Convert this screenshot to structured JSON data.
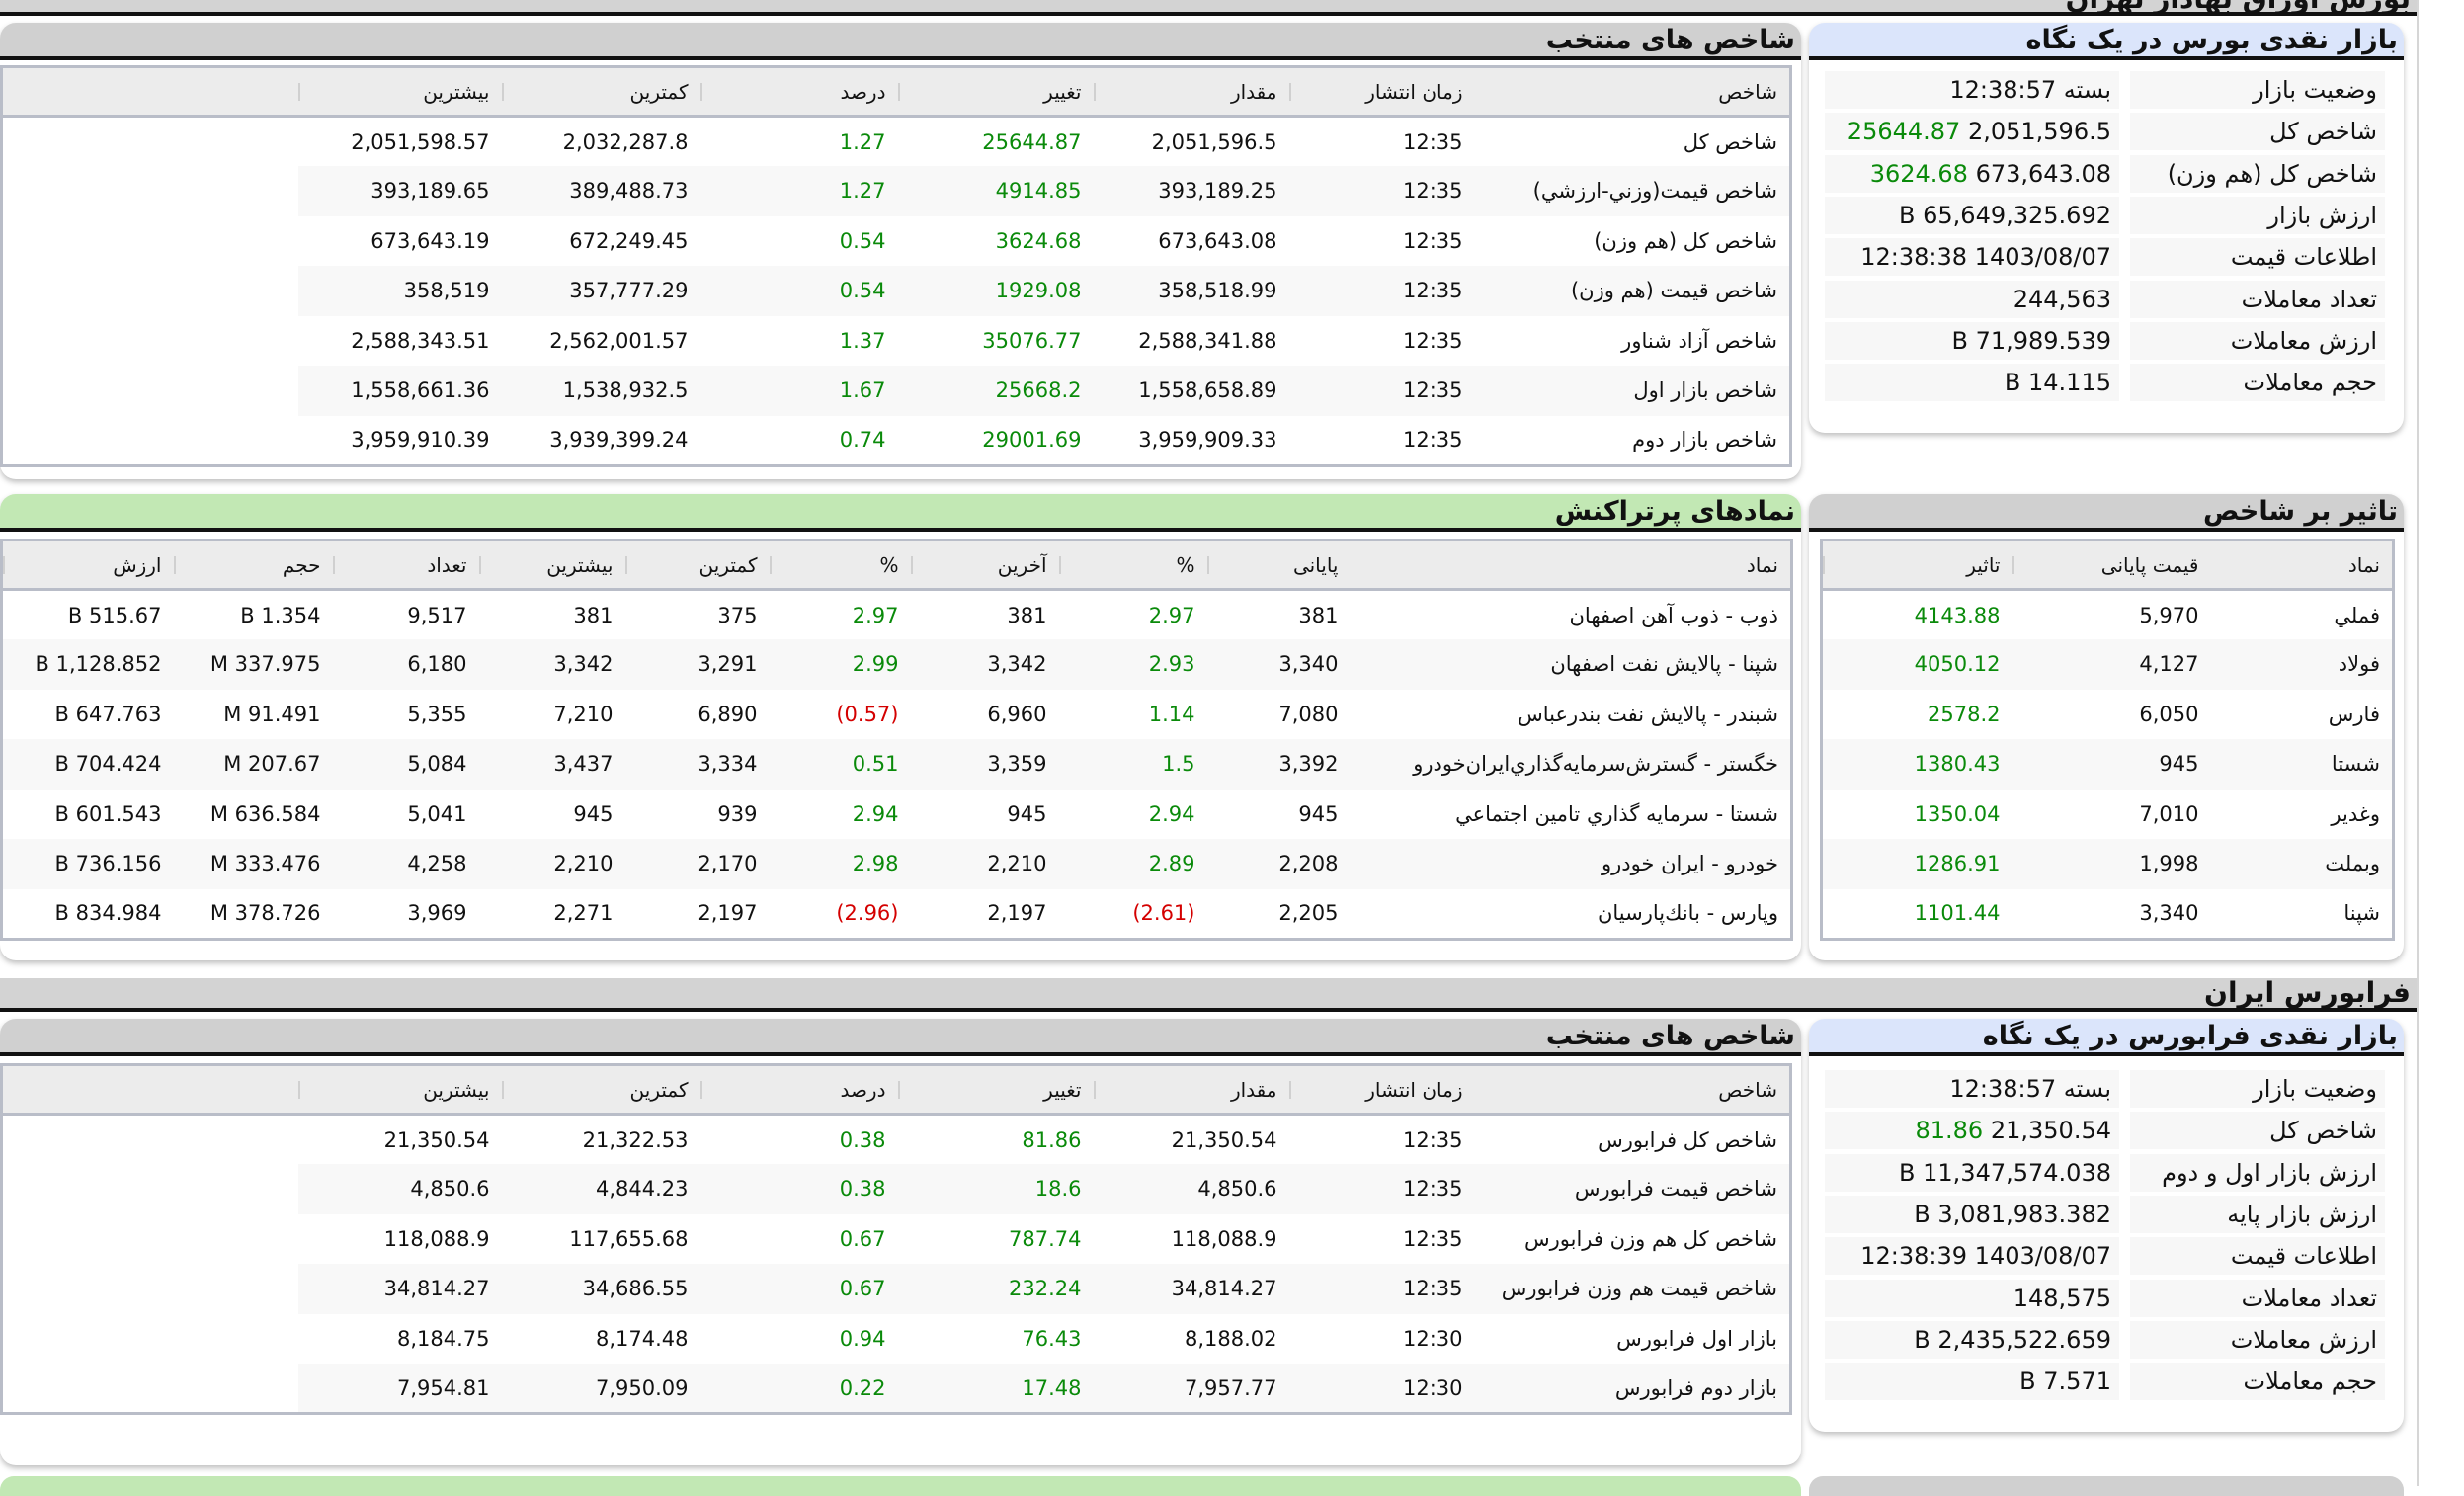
{
  "top_banner": {
    "title": "بورس اوراق بهادار تهران"
  },
  "tse_overview": {
    "title": "بازار نقدی بورس در یک نگاه",
    "rows": [
      {
        "label": "وضعیت بازار",
        "value": "بسته 12:38:57",
        "change": ""
      },
      {
        "label": "شاخص کل",
        "value": "2,051,596.5",
        "change": "25644.87"
      },
      {
        "label": "شاخص کل (هم وزن)",
        "value": "673,643.08",
        "change": "3624.68"
      },
      {
        "label": "ارزش بازار",
        "value": "65,649,325.692 B",
        "change": ""
      },
      {
        "label": "اطلاعات قیمت",
        "value": "1403/08/07 12:38:38",
        "change": ""
      },
      {
        "label": "تعداد معاملات",
        "value": "244,563",
        "change": ""
      },
      {
        "label": "ارزش معاملات",
        "value": "71,989.539 B",
        "change": ""
      },
      {
        "label": "حجم معاملات",
        "value": "14.115 B",
        "change": ""
      }
    ]
  },
  "tse_indices": {
    "title": "شاخص های منتخب",
    "columns": [
      "شاخص",
      "زمان انتشار",
      "مقدار",
      "تغییر",
      "درصد",
      "کمترین",
      "بیشترین",
      ""
    ],
    "rows": [
      [
        "شاخص کل",
        "12:35",
        "2,051,596.5",
        "25644.87",
        "1.27",
        "2,032,287.8",
        "2,051,598.57",
        ""
      ],
      [
        "شاخص قيمت(وزني-ارزشي)",
        "12:35",
        "393,189.25",
        "4914.85",
        "1.27",
        "389,488.73",
        "393,189.65",
        ""
      ],
      [
        "شاخص کل (هم وزن)",
        "12:35",
        "673,643.08",
        "3624.68",
        "0.54",
        "672,249.45",
        "673,643.19",
        ""
      ],
      [
        "شاخص قيمت (هم وزن)",
        "12:35",
        "358,518.99",
        "1929.08",
        "0.54",
        "357,777.29",
        "358,519",
        ""
      ],
      [
        "شاخص آزاد شناور",
        "12:35",
        "2,588,341.88",
        "35076.77",
        "1.37",
        "2,562,001.57",
        "2,588,343.51",
        ""
      ],
      [
        "شاخص بازار اول",
        "12:35",
        "1,558,658.89",
        "25668.2",
        "1.67",
        "1,538,932.5",
        "1,558,661.36",
        ""
      ],
      [
        "شاخص بازار دوم",
        "12:35",
        "3,959,909.33",
        "29001.69",
        "0.74",
        "3,939,399.24",
        "3,959,910.39",
        ""
      ]
    ]
  },
  "index_impact": {
    "title": "تاثیر بر شاخص",
    "columns": [
      "نماد",
      "قیمت پایانی",
      "تاثیر"
    ],
    "rows": [
      [
        "فملي",
        "5,970",
        "4143.88"
      ],
      [
        "فولاد",
        "4,127",
        "4050.12"
      ],
      [
        "فارس",
        "6,050",
        "2578.2"
      ],
      [
        "شستا",
        "945",
        "1380.43"
      ],
      [
        "وغدير",
        "7,010",
        "1350.04"
      ],
      [
        "وبملت",
        "1,998",
        "1286.91"
      ],
      [
        "شپنا",
        "3,340",
        "1101.44"
      ]
    ]
  },
  "most_traded": {
    "title": "نمادهای پرتراکنش",
    "columns": [
      "نماد",
      "پایانی",
      "%",
      "آخرین",
      "%",
      "کمترین",
      "بیشترین",
      "تعداد",
      "حجم",
      "ارزش"
    ],
    "rows": [
      [
        "ذوب - ذوب آهن اصفهان",
        "381",
        "2.97",
        "381",
        "2.97",
        "375",
        "381",
        "9,517",
        "1.354 B",
        "515.67 B"
      ],
      [
        "شپنا - پالایش نفت اصفهان",
        "3,340",
        "2.93",
        "3,342",
        "2.99",
        "3,291",
        "3,342",
        "6,180",
        "337.975 M",
        "1,128.852 B"
      ],
      [
        "شبندر - پالايش نفت بندرعباس",
        "7,080",
        "1.14",
        "6,960",
        "(0.57)",
        "6,890",
        "7,210",
        "5,355",
        "91.491 M",
        "647.763 B"
      ],
      [
        "خگستر - گسترش‌سرمايه‌گذاري‌ايران‌خودرو",
        "3,392",
        "1.5",
        "3,359",
        "0.51",
        "3,334",
        "3,437",
        "5,084",
        "207.67 M",
        "704.424 B"
      ],
      [
        "شستا - سرمايه گذاري تامين اجتماعي",
        "945",
        "2.94",
        "945",
        "2.94",
        "939",
        "945",
        "5,041",
        "636.584 M",
        "601.543 B"
      ],
      [
        "خودرو - ايران خودرو",
        "2,208",
        "2.89",
        "2,210",
        "2.98",
        "2,170",
        "2,210",
        "4,258",
        "333.476 M",
        "736.156 B"
      ],
      [
        "وپارس - بانك‌پارسيان",
        "2,205",
        "(2.61)",
        "2,197",
        "(2.96)",
        "2,197",
        "2,271",
        "3,969",
        "378.726 M",
        "834.984 B"
      ]
    ]
  },
  "ifb_banner": {
    "title": "فرابورس ایران"
  },
  "ifb_overview": {
    "title": "بازار نقدی فرابورس در یک نگاه",
    "rows": [
      {
        "label": "وضعیت بازار",
        "value": "بسته 12:38:57",
        "change": ""
      },
      {
        "label": "شاخص کل",
        "value": "21,350.54",
        "change": "81.86"
      },
      {
        "label": "ارزش بازار اول و دوم",
        "value": "11,347,574.038 B",
        "change": ""
      },
      {
        "label": "ارزش بازار پایه",
        "value": "3,081,983.382 B",
        "change": ""
      },
      {
        "label": "اطلاعات قیمت",
        "value": "1403/08/07 12:38:39",
        "change": ""
      },
      {
        "label": "تعداد معاملات",
        "value": "148,575",
        "change": ""
      },
      {
        "label": "ارزش معاملات",
        "value": "2,435,522.659 B",
        "change": ""
      },
      {
        "label": "حجم معاملات",
        "value": "7.571 B",
        "change": ""
      }
    ]
  },
  "ifb_indices": {
    "title": "شاخص های منتخب",
    "columns": [
      "شاخص",
      "زمان انتشار",
      "مقدار",
      "تغییر",
      "درصد",
      "کمترین",
      "بیشترین",
      ""
    ],
    "rows": [
      [
        "شاخص کل فرابورس",
        "12:35",
        "21,350.54",
        "81.86",
        "0.38",
        "21,322.53",
        "21,350.54",
        ""
      ],
      [
        "شاخص قیمت فرابورس",
        "12:35",
        "4,850.6",
        "18.6",
        "0.38",
        "4,844.23",
        "4,850.6",
        ""
      ],
      [
        "شاخص کل هم وزن فرابورس",
        "12:35",
        "118,088.9",
        "787.74",
        "0.67",
        "117,655.68",
        "118,088.9",
        ""
      ],
      [
        "شاخص قیمت هم وزن فرابورس",
        "12:35",
        "34,814.27",
        "232.24",
        "0.67",
        "34,686.55",
        "34,814.27",
        ""
      ],
      [
        "بازار اول فرابورس",
        "12:30",
        "8,188.02",
        "76.43",
        "0.94",
        "8,174.48",
        "8,184.75",
        ""
      ],
      [
        "بازار دوم فرابورس",
        "12:30",
        "7,957.77",
        "17.48",
        "0.22",
        "7,950.09",
        "7,954.81",
        ""
      ]
    ]
  },
  "colors": {
    "positive": "#0a8a0a",
    "negative": "#d40000",
    "header_gray": "#d0d0d0",
    "header_blue": "#dbe5fb",
    "header_green": "#c2e8b4"
  }
}
